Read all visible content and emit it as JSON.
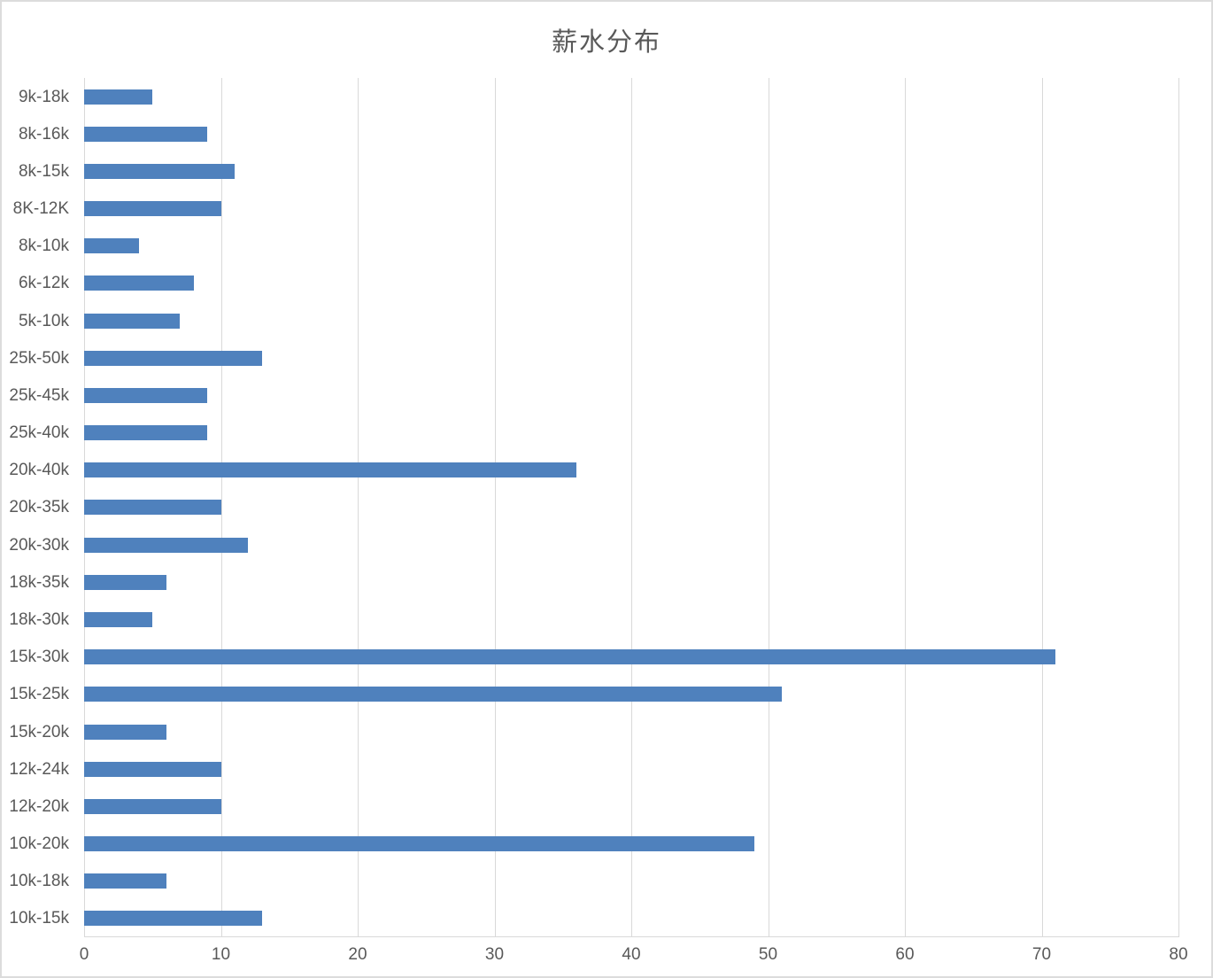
{
  "title": "薪水分布",
  "chart_data": {
    "type": "bar",
    "orientation": "horizontal",
    "title": "薪水分布",
    "categories": [
      "9k-18k",
      "8k-16k",
      "8k-15k",
      "8K-12K",
      "8k-10k",
      "6k-12k",
      "5k-10k",
      "25k-50k",
      "25k-45k",
      "25k-40k",
      "20k-40k",
      "20k-35k",
      "20k-30k",
      "18k-35k",
      "18k-30k",
      "15k-30k",
      "15k-25k",
      "15k-20k",
      "12k-24k",
      "12k-20k",
      "10k-20k",
      "10k-18k",
      "10k-15k"
    ],
    "values": [
      5,
      9,
      11,
      10,
      4,
      8,
      7,
      13,
      9,
      9,
      36,
      10,
      12,
      6,
      5,
      71,
      51,
      6,
      10,
      10,
      49,
      6,
      13
    ],
    "xlabel": "",
    "ylabel": "",
    "xlim": [
      0,
      80
    ],
    "x_ticks": [
      "0",
      "10",
      "20",
      "30",
      "40",
      "50",
      "60",
      "70",
      "80"
    ],
    "grid": "vertical-gridlines-on",
    "legend": "none",
    "colors": {
      "bar": "#4f81bd",
      "gridline": "#d9d9d9",
      "axis_line": "#d9d9d9",
      "text": "#595959",
      "background": "#ffffff",
      "frame_border": "#dcdcdc"
    }
  }
}
